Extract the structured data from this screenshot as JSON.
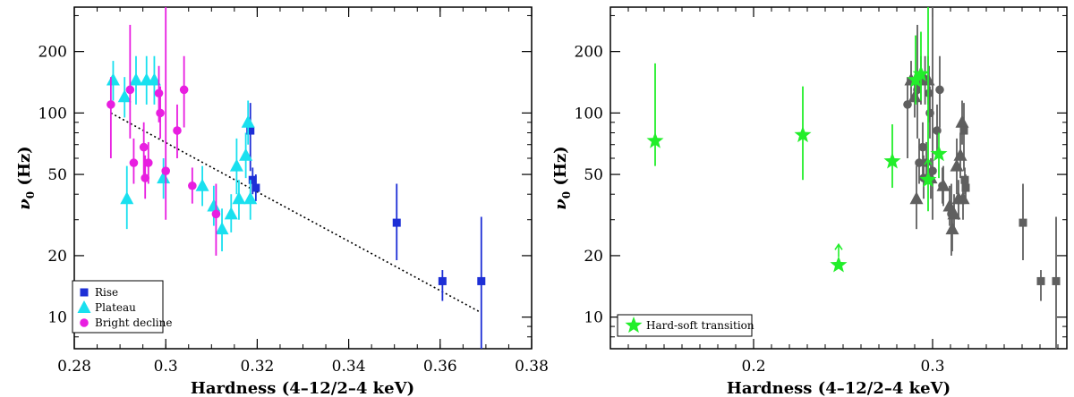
{
  "chart_data": [
    {
      "id": "left",
      "type": "scatter",
      "xlabel": "Hardness (4–12/2–4 keV)",
      "ylabel_symbol": "ν",
      "ylabel_sub": "0",
      "ylabel_unit": "(Hz)",
      "xscale": "linear",
      "yscale": "log",
      "xlim": [
        0.28,
        0.38
      ],
      "ylim": [
        7,
        330
      ],
      "xticks": [
        0.28,
        0.3,
        0.32,
        0.34,
        0.36,
        0.38
      ],
      "xtick_labels": [
        "0.28",
        "0.3",
        "0.32",
        "0.34",
        "0.36",
        "0.38"
      ],
      "yticks": [
        10,
        20,
        50,
        100,
        200
      ],
      "ytick_labels": [
        "10",
        "20",
        "50",
        "100",
        "200"
      ],
      "legend_position": "bottom-left",
      "trend_line": {
        "style": "dotted",
        "color": "#000000",
        "points": [
          [
            0.288,
            100
          ],
          [
            0.369,
            10.5
          ]
        ]
      },
      "series": [
        {
          "name": "Rise",
          "marker": "square",
          "color": "#1d2fd6",
          "points": [
            {
              "x": 0.3185,
              "y": 82,
              "lo": 52,
              "hi": 112
            },
            {
              "x": 0.319,
              "y": 47,
              "lo": 40,
              "hi": 54
            },
            {
              "x": 0.3197,
              "y": 43,
              "lo": 37,
              "hi": 50
            },
            {
              "x": 0.3505,
              "y": 29,
              "lo": 19,
              "hi": 45
            },
            {
              "x": 0.3605,
              "y": 15,
              "lo": 12,
              "hi": 17
            },
            {
              "x": 0.369,
              "y": 15,
              "lo": 6.5,
              "hi": 31
            }
          ]
        },
        {
          "name": "Plateau",
          "marker": "triangle",
          "color": "#19e0ef",
          "points": [
            {
              "x": 0.2885,
              "y": 145,
              "lo": 115,
              "hi": 180
            },
            {
              "x": 0.291,
              "y": 120,
              "lo": 95,
              "hi": 150
            },
            {
              "x": 0.2915,
              "y": 38,
              "lo": 27,
              "hi": 55
            },
            {
              "x": 0.2935,
              "y": 145,
              "lo": 110,
              "hi": 190
            },
            {
              "x": 0.2958,
              "y": 145,
              "lo": 110,
              "hi": 190
            },
            {
              "x": 0.2975,
              "y": 145,
              "lo": 110,
              "hi": 190
            },
            {
              "x": 0.2995,
              "y": 48,
              "lo": 38,
              "hi": 60
            },
            {
              "x": 0.308,
              "y": 44,
              "lo": 35,
              "hi": 55
            },
            {
              "x": 0.3105,
              "y": 35,
              "lo": 28,
              "hi": 44
            },
            {
              "x": 0.3123,
              "y": 27,
              "lo": 21,
              "hi": 34
            },
            {
              "x": 0.3143,
              "y": 32,
              "lo": 26,
              "hi": 40
            },
            {
              "x": 0.3155,
              "y": 55,
              "lo": 40,
              "hi": 75
            },
            {
              "x": 0.316,
              "y": 38,
              "lo": 30,
              "hi": 47
            },
            {
              "x": 0.3175,
              "y": 62,
              "lo": 48,
              "hi": 80
            },
            {
              "x": 0.318,
              "y": 90,
              "lo": 70,
              "hi": 115
            },
            {
              "x": 0.3185,
              "y": 38,
              "lo": 30,
              "hi": 47
            }
          ]
        },
        {
          "name": "Bright decline",
          "marker": "circle",
          "color": "#e81ee0",
          "points": [
            {
              "x": 0.288,
              "y": 110,
              "lo": 60,
              "hi": 150
            },
            {
              "x": 0.2922,
              "y": 130,
              "lo": 75,
              "hi": 270
            },
            {
              "x": 0.293,
              "y": 57,
              "lo": 45,
              "hi": 75
            },
            {
              "x": 0.2952,
              "y": 68,
              "lo": 50,
              "hi": 90
            },
            {
              "x": 0.2955,
              "y": 48,
              "lo": 38,
              "hi": 62
            },
            {
              "x": 0.2962,
              "y": 57,
              "lo": 45,
              "hi": 72
            },
            {
              "x": 0.2985,
              "y": 125,
              "lo": 90,
              "hi": 170
            },
            {
              "x": 0.2988,
              "y": 100,
              "lo": 75,
              "hi": 135
            },
            {
              "x": 0.3,
              "y": 52,
              "lo": 30,
              "hi": 330
            },
            {
              "x": 0.3025,
              "y": 82,
              "lo": 60,
              "hi": 110
            },
            {
              "x": 0.304,
              "y": 130,
              "lo": 85,
              "hi": 190
            },
            {
              "x": 0.3058,
              "y": 44,
              "lo": 36,
              "hi": 54
            },
            {
              "x": 0.311,
              "y": 32,
              "lo": 20,
              "hi": 45
            }
          ]
        }
      ]
    },
    {
      "id": "right",
      "type": "scatter",
      "xlabel": "Hardness (4–12/2–4 keV)",
      "ylabel_symbol": "ν",
      "ylabel_sub": "0",
      "ylabel_unit": "(Hz)",
      "xscale": "linear",
      "yscale": "log",
      "xlim": [
        0.12,
        0.375
      ],
      "ylim": [
        7,
        330
      ],
      "xticks": [
        0.2,
        0.3
      ],
      "xtick_labels": [
        "0.2",
        "0.3"
      ],
      "yticks": [
        10,
        20,
        50,
        100,
        200
      ],
      "ytick_labels": [
        "10",
        "20",
        "50",
        "100",
        "200"
      ],
      "legend_position": "bottom-left",
      "series": [
        {
          "name": "Rise / Plateau / Bright decline (grey)",
          "in_legend": false,
          "marker": "mixed",
          "color": "#5f5f5f",
          "points": [
            {
              "x": 0.286,
              "y": 110,
              "lo": 60,
              "hi": 150,
              "m": "circle"
            },
            {
              "x": 0.288,
              "y": 145,
              "lo": 115,
              "hi": 180,
              "m": "triangle"
            },
            {
              "x": 0.29,
              "y": 120,
              "lo": 95,
              "hi": 150,
              "m": "triangle"
            },
            {
              "x": 0.291,
              "y": 38,
              "lo": 27,
              "hi": 55,
              "m": "triangle"
            },
            {
              "x": 0.2915,
              "y": 130,
              "lo": 75,
              "hi": 270,
              "m": "circle"
            },
            {
              "x": 0.2925,
              "y": 57,
              "lo": 45,
              "hi": 75,
              "m": "circle"
            },
            {
              "x": 0.2935,
              "y": 145,
              "lo": 110,
              "hi": 190,
              "m": "triangle"
            },
            {
              "x": 0.2945,
              "y": 68,
              "lo": 50,
              "hi": 90,
              "m": "circle"
            },
            {
              "x": 0.295,
              "y": 48,
              "lo": 38,
              "hi": 62,
              "m": "circle"
            },
            {
              "x": 0.2958,
              "y": 145,
              "lo": 110,
              "hi": 190,
              "m": "triangle"
            },
            {
              "x": 0.2965,
              "y": 57,
              "lo": 45,
              "hi": 72,
              "m": "circle"
            },
            {
              "x": 0.2975,
              "y": 145,
              "lo": 110,
              "hi": 190,
              "m": "triangle"
            },
            {
              "x": 0.298,
              "y": 125,
              "lo": 90,
              "hi": 170,
              "m": "circle"
            },
            {
              "x": 0.2985,
              "y": 100,
              "lo": 75,
              "hi": 135,
              "m": "circle"
            },
            {
              "x": 0.299,
              "y": 48,
              "lo": 38,
              "hi": 60,
              "m": "triangle"
            },
            {
              "x": 0.3,
              "y": 52,
              "lo": 30,
              "hi": 330,
              "m": "circle"
            },
            {
              "x": 0.3025,
              "y": 82,
              "lo": 60,
              "hi": 110,
              "m": "circle"
            },
            {
              "x": 0.304,
              "y": 130,
              "lo": 85,
              "hi": 190,
              "m": "circle"
            },
            {
              "x": 0.3055,
              "y": 44,
              "lo": 36,
              "hi": 54,
              "m": "circle"
            },
            {
              "x": 0.306,
              "y": 44,
              "lo": 35,
              "hi": 55,
              "m": "triangle"
            },
            {
              "x": 0.3095,
              "y": 35,
              "lo": 28,
              "hi": 44,
              "m": "triangle"
            },
            {
              "x": 0.3105,
              "y": 32,
              "lo": 20,
              "hi": 45,
              "m": "circle"
            },
            {
              "x": 0.311,
              "y": 27,
              "lo": 21,
              "hi": 34,
              "m": "triangle"
            },
            {
              "x": 0.312,
              "y": 32,
              "lo": 26,
              "hi": 40,
              "m": "triangle"
            },
            {
              "x": 0.3135,
              "y": 55,
              "lo": 40,
              "hi": 75,
              "m": "triangle"
            },
            {
              "x": 0.3145,
              "y": 38,
              "lo": 30,
              "hi": 47,
              "m": "triangle"
            },
            {
              "x": 0.3155,
              "y": 62,
              "lo": 48,
              "hi": 80,
              "m": "triangle"
            },
            {
              "x": 0.3165,
              "y": 90,
              "lo": 70,
              "hi": 115,
              "m": "triangle"
            },
            {
              "x": 0.317,
              "y": 38,
              "lo": 30,
              "hi": 47,
              "m": "triangle"
            },
            {
              "x": 0.3175,
              "y": 82,
              "lo": 52,
              "hi": 112,
              "m": "square"
            },
            {
              "x": 0.318,
              "y": 47,
              "lo": 40,
              "hi": 54,
              "m": "square"
            },
            {
              "x": 0.3185,
              "y": 43,
              "lo": 37,
              "hi": 50,
              "m": "square"
            },
            {
              "x": 0.3505,
              "y": 29,
              "lo": 19,
              "hi": 45,
              "m": "square"
            },
            {
              "x": 0.3605,
              "y": 15,
              "lo": 12,
              "hi": 17,
              "m": "square"
            },
            {
              "x": 0.369,
              "y": 15,
              "lo": 6.5,
              "hi": 31,
              "m": "square"
            }
          ]
        },
        {
          "name": "Hard-soft transition",
          "marker": "star",
          "color": "#22ee2a",
          "points": [
            {
              "x": 0.145,
              "y": 73,
              "lo": 55,
              "hi": 175
            },
            {
              "x": 0.2275,
              "y": 78,
              "lo": 47,
              "hi": 135
            },
            {
              "x": 0.2475,
              "y": 18,
              "lo": 18,
              "hi": 18,
              "arrow_up": true
            },
            {
              "x": 0.2775,
              "y": 58,
              "lo": 43,
              "hi": 88
            },
            {
              "x": 0.2905,
              "y": 145,
              "lo": 110,
              "hi": 240
            },
            {
              "x": 0.2935,
              "y": 155,
              "lo": 115,
              "hi": 250
            },
            {
              "x": 0.2975,
              "y": 47,
              "lo": 33,
              "hi": 330,
              "arrow_up": true
            },
            {
              "x": 0.3035,
              "y": 63,
              "lo": 48,
              "hi": 80
            }
          ]
        }
      ]
    }
  ]
}
